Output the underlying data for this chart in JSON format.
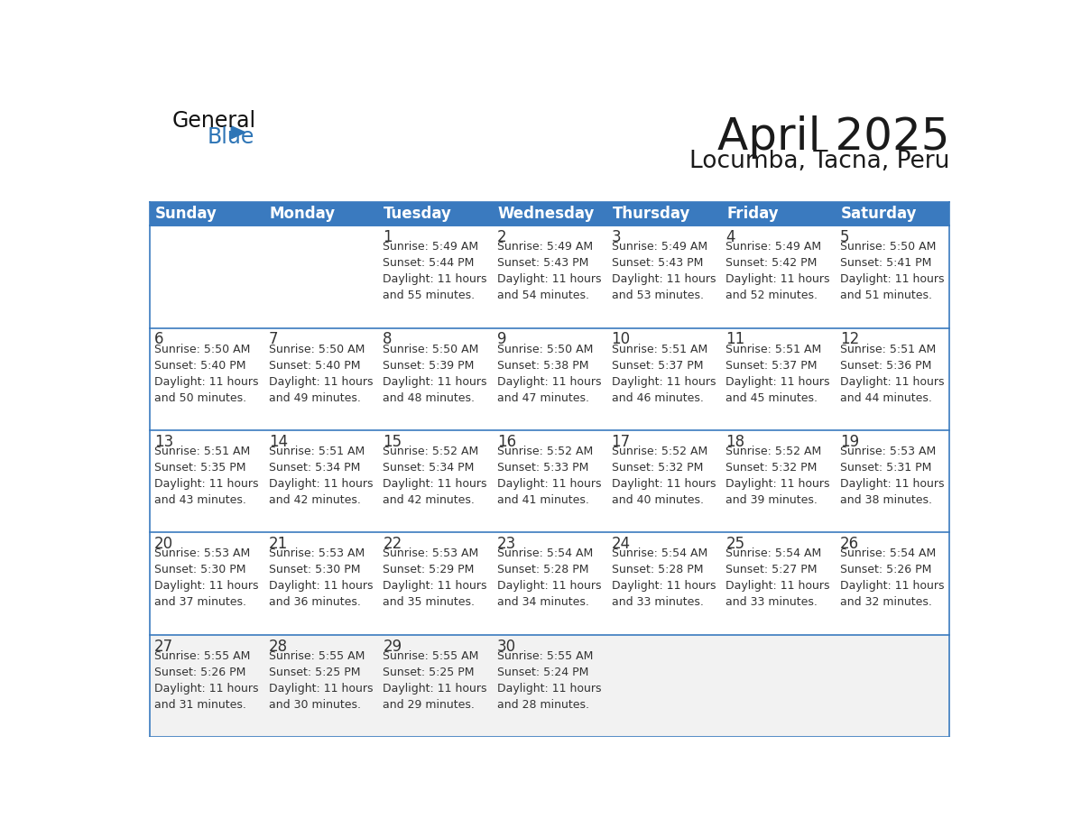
{
  "title": "April 2025",
  "subtitle": "Locumba, Tacna, Peru",
  "header_bg": "#3a7abf",
  "header_text": "#ffffff",
  "row_bg_odd": "#ffffff",
  "row_bg_even": "#ffffff",
  "row_bg_last": "#f2f2f2",
  "cell_line_color": "#3a7abf",
  "day_number_color": "#333333",
  "info_text_color": "#333333",
  "day_headers": [
    "Sunday",
    "Monday",
    "Tuesday",
    "Wednesday",
    "Thursday",
    "Friday",
    "Saturday"
  ],
  "weeks": [
    [
      {
        "day": "",
        "info": ""
      },
      {
        "day": "",
        "info": ""
      },
      {
        "day": "1",
        "info": "Sunrise: 5:49 AM\nSunset: 5:44 PM\nDaylight: 11 hours\nand 55 minutes."
      },
      {
        "day": "2",
        "info": "Sunrise: 5:49 AM\nSunset: 5:43 PM\nDaylight: 11 hours\nand 54 minutes."
      },
      {
        "day": "3",
        "info": "Sunrise: 5:49 AM\nSunset: 5:43 PM\nDaylight: 11 hours\nand 53 minutes."
      },
      {
        "day": "4",
        "info": "Sunrise: 5:49 AM\nSunset: 5:42 PM\nDaylight: 11 hours\nand 52 minutes."
      },
      {
        "day": "5",
        "info": "Sunrise: 5:50 AM\nSunset: 5:41 PM\nDaylight: 11 hours\nand 51 minutes."
      }
    ],
    [
      {
        "day": "6",
        "info": "Sunrise: 5:50 AM\nSunset: 5:40 PM\nDaylight: 11 hours\nand 50 minutes."
      },
      {
        "day": "7",
        "info": "Sunrise: 5:50 AM\nSunset: 5:40 PM\nDaylight: 11 hours\nand 49 minutes."
      },
      {
        "day": "8",
        "info": "Sunrise: 5:50 AM\nSunset: 5:39 PM\nDaylight: 11 hours\nand 48 minutes."
      },
      {
        "day": "9",
        "info": "Sunrise: 5:50 AM\nSunset: 5:38 PM\nDaylight: 11 hours\nand 47 minutes."
      },
      {
        "day": "10",
        "info": "Sunrise: 5:51 AM\nSunset: 5:37 PM\nDaylight: 11 hours\nand 46 minutes."
      },
      {
        "day": "11",
        "info": "Sunrise: 5:51 AM\nSunset: 5:37 PM\nDaylight: 11 hours\nand 45 minutes."
      },
      {
        "day": "12",
        "info": "Sunrise: 5:51 AM\nSunset: 5:36 PM\nDaylight: 11 hours\nand 44 minutes."
      }
    ],
    [
      {
        "day": "13",
        "info": "Sunrise: 5:51 AM\nSunset: 5:35 PM\nDaylight: 11 hours\nand 43 minutes."
      },
      {
        "day": "14",
        "info": "Sunrise: 5:51 AM\nSunset: 5:34 PM\nDaylight: 11 hours\nand 42 minutes."
      },
      {
        "day": "15",
        "info": "Sunrise: 5:52 AM\nSunset: 5:34 PM\nDaylight: 11 hours\nand 42 minutes."
      },
      {
        "day": "16",
        "info": "Sunrise: 5:52 AM\nSunset: 5:33 PM\nDaylight: 11 hours\nand 41 minutes."
      },
      {
        "day": "17",
        "info": "Sunrise: 5:52 AM\nSunset: 5:32 PM\nDaylight: 11 hours\nand 40 minutes."
      },
      {
        "day": "18",
        "info": "Sunrise: 5:52 AM\nSunset: 5:32 PM\nDaylight: 11 hours\nand 39 minutes."
      },
      {
        "day": "19",
        "info": "Sunrise: 5:53 AM\nSunset: 5:31 PM\nDaylight: 11 hours\nand 38 minutes."
      }
    ],
    [
      {
        "day": "20",
        "info": "Sunrise: 5:53 AM\nSunset: 5:30 PM\nDaylight: 11 hours\nand 37 minutes."
      },
      {
        "day": "21",
        "info": "Sunrise: 5:53 AM\nSunset: 5:30 PM\nDaylight: 11 hours\nand 36 minutes."
      },
      {
        "day": "22",
        "info": "Sunrise: 5:53 AM\nSunset: 5:29 PM\nDaylight: 11 hours\nand 35 minutes."
      },
      {
        "day": "23",
        "info": "Sunrise: 5:54 AM\nSunset: 5:28 PM\nDaylight: 11 hours\nand 34 minutes."
      },
      {
        "day": "24",
        "info": "Sunrise: 5:54 AM\nSunset: 5:28 PM\nDaylight: 11 hours\nand 33 minutes."
      },
      {
        "day": "25",
        "info": "Sunrise: 5:54 AM\nSunset: 5:27 PM\nDaylight: 11 hours\nand 33 minutes."
      },
      {
        "day": "26",
        "info": "Sunrise: 5:54 AM\nSunset: 5:26 PM\nDaylight: 11 hours\nand 32 minutes."
      }
    ],
    [
      {
        "day": "27",
        "info": "Sunrise: 5:55 AM\nSunset: 5:26 PM\nDaylight: 11 hours\nand 31 minutes."
      },
      {
        "day": "28",
        "info": "Sunrise: 5:55 AM\nSunset: 5:25 PM\nDaylight: 11 hours\nand 30 minutes."
      },
      {
        "day": "29",
        "info": "Sunrise: 5:55 AM\nSunset: 5:25 PM\nDaylight: 11 hours\nand 29 minutes."
      },
      {
        "day": "30",
        "info": "Sunrise: 5:55 AM\nSunset: 5:24 PM\nDaylight: 11 hours\nand 28 minutes."
      },
      {
        "day": "",
        "info": ""
      },
      {
        "day": "",
        "info": ""
      },
      {
        "day": "",
        "info": ""
      }
    ]
  ],
  "logo_text_general": "General",
  "logo_text_blue": "Blue",
  "logo_triangle_color": "#2e75b6",
  "title_color": "#1a1a1a",
  "subtitle_color": "#1a1a1a"
}
